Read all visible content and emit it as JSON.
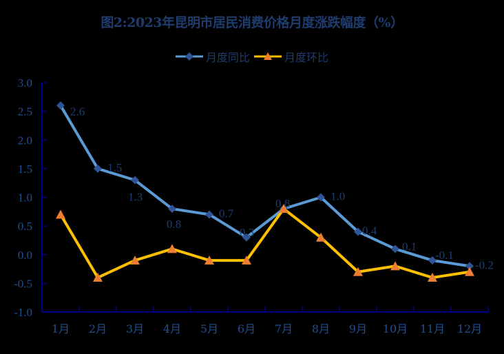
{
  "chart_data": {
    "type": "line",
    "title": "图2:2023年昆明市居民消费价格月度涨跌幅度（%）",
    "categories": [
      "1月",
      "2月",
      "3月",
      "4月",
      "5月",
      "6月",
      "7月",
      "8月",
      "9月",
      "10月",
      "11月",
      "12月"
    ],
    "series": [
      {
        "name": "月度同比",
        "values": [
          2.6,
          1.5,
          1.3,
          0.8,
          0.7,
          0.3,
          0.8,
          1.0,
          0.4,
          0.1,
          -0.1,
          -0.2
        ],
        "line_color": "#5B9BD5",
        "marker": "diamond",
        "marker_color": "#2F5597",
        "data_labels": true
      },
      {
        "name": "月度环比",
        "values": [
          0.7,
          -0.4,
          -0.1,
          0.1,
          -0.1,
          -0.1,
          0.8,
          0.3,
          -0.3,
          -0.2,
          -0.4,
          -0.3
        ],
        "line_color": "#FFC000",
        "marker": "triangle",
        "marker_color": "#ED7D31",
        "data_labels": false
      }
    ],
    "xlabel": "",
    "ylabel": "",
    "ylim": [
      -1.0,
      3.0
    ],
    "yticks": [
      "3.0",
      "2.5",
      "2.0",
      "1.5",
      "1.0",
      "0.5",
      "0.0",
      "-0.5",
      "-1.0"
    ],
    "grid": false,
    "legend_position": "top"
  },
  "labels": {
    "title": "图2:2023年昆明市居民消费价格月度涨跌幅度（%）",
    "legend_yoy": "月度同比",
    "legend_mom": "月度环比"
  }
}
